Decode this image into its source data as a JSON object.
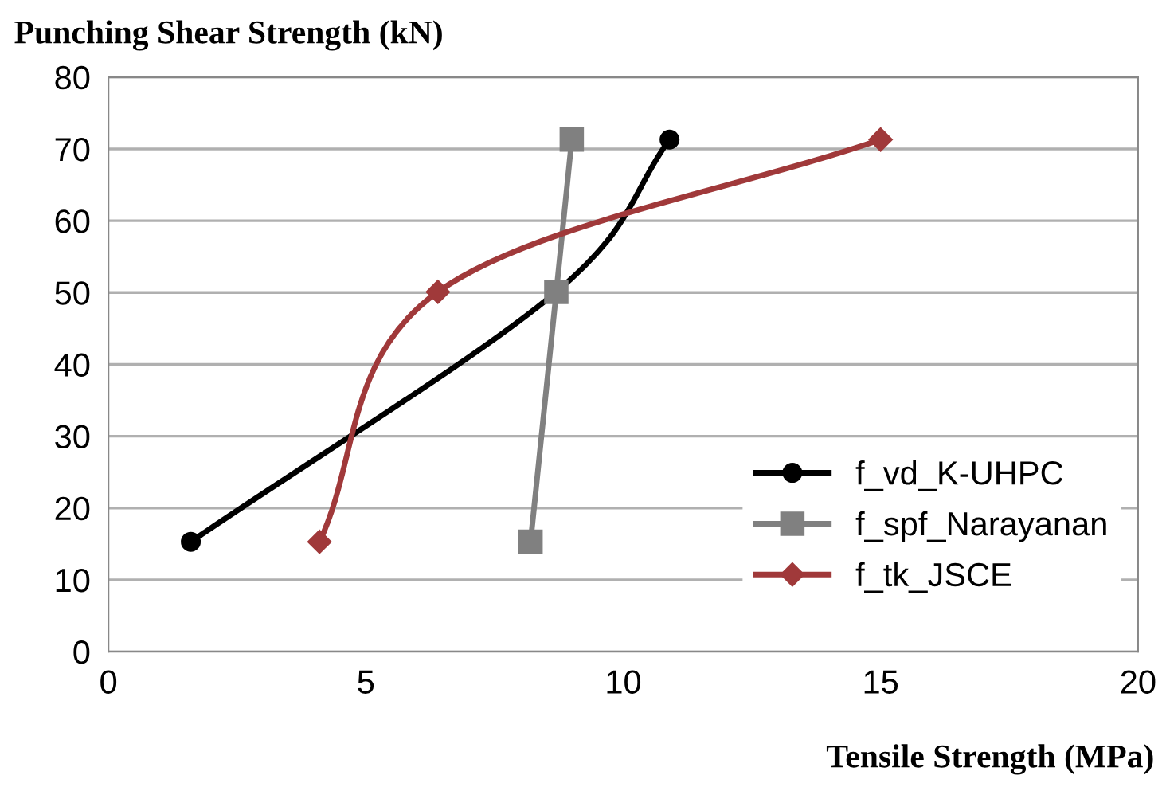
{
  "chart_data": {
    "type": "line",
    "title": "Punching Shear Strength (kN)",
    "xlabel": "Tensile Strength (MPa)",
    "xlim": [
      0,
      20
    ],
    "xticks": [
      0,
      5,
      10,
      15,
      20
    ],
    "ylim": [
      0,
      80
    ],
    "yticks": [
      0,
      10,
      20,
      30,
      40,
      50,
      60,
      70,
      80
    ],
    "grid": "y",
    "legend": "bottom right",
    "series": [
      {
        "name": "f_vd_K-UHPC",
        "color": "#000000",
        "marker": "circle",
        "x": [
          1.6,
          8.7,
          10.9
        ],
        "values": [
          15.3,
          50.1,
          71.3
        ]
      },
      {
        "name": "f_spf_Narayanan",
        "color": "#808080",
        "marker": "square",
        "x": [
          8.2,
          8.7,
          9.0
        ],
        "values": [
          15.3,
          50.1,
          71.3
        ]
      },
      {
        "name": "f_tk_JSCE",
        "color": "#a0393a",
        "marker": "diamond",
        "x": [
          4.1,
          6.4,
          15.0
        ],
        "values": [
          15.3,
          50.1,
          71.3
        ]
      }
    ]
  }
}
